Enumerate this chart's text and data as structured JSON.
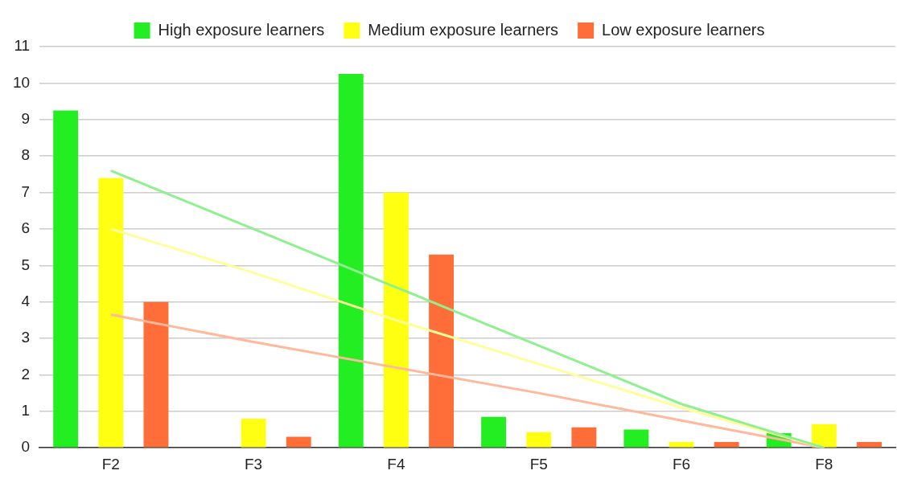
{
  "chart_data": {
    "type": "bar",
    "categories": [
      "F2",
      "F3",
      "F4",
      "F5",
      "F6",
      "F8"
    ],
    "series": [
      {
        "name": "High exposure learners",
        "color": "#22ee22",
        "values": [
          9.25,
          0,
          10.25,
          0.85,
          0.5,
          0.4
        ]
      },
      {
        "name": "Medium exposure learners",
        "color": "#ffff11",
        "values": [
          7.4,
          0.8,
          7.0,
          0.43,
          0.16,
          0.65
        ]
      },
      {
        "name": "Low exposure learners",
        "color": "#ff6d38",
        "values": [
          4.0,
          0.3,
          5.3,
          0.56,
          0.16,
          0.16
        ]
      },
      {
        "type": "line",
        "color": "#8ef08e",
        "values": [
          7.6,
          6.0,
          4.4,
          2.8,
          1.2,
          0
        ]
      },
      {
        "type": "line",
        "color": "#ffff99",
        "values": [
          6.0,
          4.8,
          3.5,
          2.3,
          1.1,
          0
        ]
      },
      {
        "type": "line",
        "color": "#ffb89c",
        "values": [
          3.65,
          2.9,
          2.2,
          1.5,
          0.75,
          0
        ]
      }
    ],
    "ylim": [
      0,
      11
    ],
    "yticks": [
      0,
      1,
      2,
      3,
      4,
      5,
      6,
      7,
      8,
      9,
      10,
      11
    ],
    "grid": "y",
    "legend": "top",
    "marker": "none",
    "line_style": "solid"
  }
}
